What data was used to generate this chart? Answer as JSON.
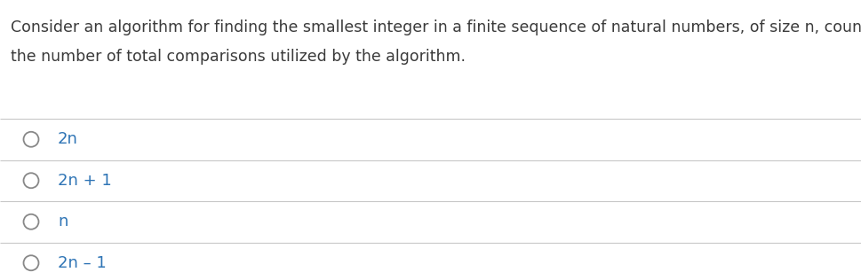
{
  "question_line1": "Consider an algorithm for finding the smallest integer in a finite sequence of natural numbers, of size n, count",
  "question_line2": "the number of total comparisons utilized by the algorithm.",
  "options": [
    "2n",
    "2n + 1",
    "n",
    "2n – 1"
  ],
  "question_text_color": "#3a3a3a",
  "option_text_color": "#2E74B5",
  "circle_color": "#888888",
  "background_color": "#ffffff",
  "divider_color": "#C8C8C8",
  "question_fontsize": 12.5,
  "option_fontsize": 13.0,
  "fig_width": 9.69,
  "fig_height": 3.16,
  "dpi": 100
}
